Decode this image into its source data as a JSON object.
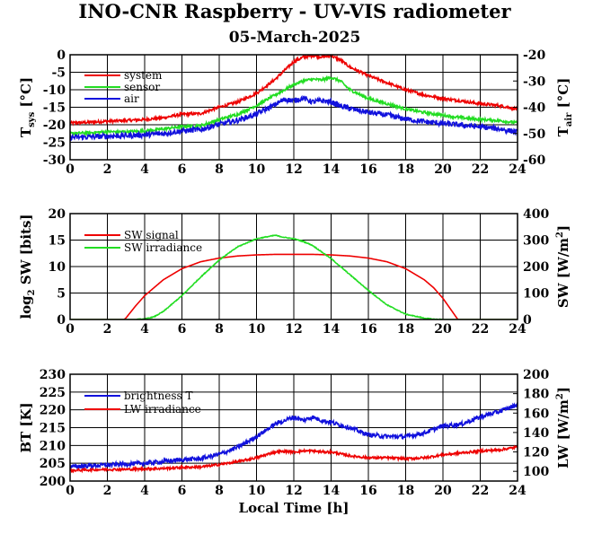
{
  "figure": {
    "title": "INO-CNR Raspberry - UV-VIS radiometer",
    "subtitle": "05-March-2025"
  },
  "chart_data": [
    {
      "type": "line",
      "x": [
        0,
        1,
        2,
        3,
        4,
        5,
        6,
        7,
        8,
        9,
        10,
        11,
        11.5,
        12,
        12.5,
        13,
        13.5,
        14,
        14.5,
        15,
        16,
        17,
        18,
        19,
        20,
        21,
        22,
        23,
        24
      ],
      "xlim": [
        0,
        24
      ],
      "xticks": [
        "0",
        "2",
        "4",
        "6",
        "8",
        "10",
        "12",
        "14",
        "16",
        "18",
        "20",
        "22",
        "24"
      ],
      "ylim": [
        -30,
        0
      ],
      "yticks": [
        "-30",
        "-25",
        "-20",
        "-15",
        "-10",
        "-5",
        "0"
      ],
      "y2lim": [
        -60,
        -20
      ],
      "y2ticks": [
        "-60",
        "-50",
        "-40",
        "-30",
        "-20"
      ],
      "ylabel": "T",
      "ylabel_sub": "sys",
      "ylabel_unit": " [°C]",
      "y2label": "T",
      "y2label_sub": "air",
      "y2label_unit": " [°C]",
      "xlabel": "",
      "grid": true,
      "legend_position": "top-left",
      "series": [
        {
          "name": "system",
          "color": "#ee0000",
          "axis": "left",
          "values": [
            -19.5,
            -19.3,
            -19,
            -18.8,
            -18.5,
            -18,
            -17,
            -16.8,
            -15,
            -13.5,
            -11,
            -7,
            -4.5,
            -2,
            -0.7,
            -0.2,
            -0.6,
            -0.3,
            -1.5,
            -3.5,
            -6,
            -8,
            -10,
            -11.5,
            -12.5,
            -13.2,
            -14,
            -14.5,
            -15.5
          ],
          "noise": 0.4
        },
        {
          "name": "sensor",
          "color": "#22dd22",
          "axis": "left",
          "values": [
            -22.5,
            -22.3,
            -22,
            -22,
            -21.8,
            -21.2,
            -20.5,
            -20.3,
            -18.5,
            -17,
            -14.5,
            -11.5,
            -10,
            -8.5,
            -7.5,
            -7,
            -7.2,
            -6.5,
            -7.5,
            -10,
            -12.5,
            -14,
            -15.5,
            -16.5,
            -17.3,
            -18,
            -18.5,
            -18.8,
            -19.5
          ],
          "noise": 0.4
        },
        {
          "name": "air",
          "color": "#1111dd",
          "axis": "right",
          "values": [
            -51.5,
            -51.3,
            -51,
            -50.8,
            -50.5,
            -50,
            -49,
            -48.5,
            -46.5,
            -45,
            -42.5,
            -39,
            -37,
            -37.5,
            -36.5,
            -38,
            -37.5,
            -38,
            -39.5,
            -40.5,
            -42,
            -43,
            -44.5,
            -45.5,
            -46.2,
            -46.8,
            -47.5,
            -48.2,
            -49.5
          ],
          "noise": 1.0
        }
      ]
    },
    {
      "type": "line",
      "x": [
        0,
        2,
        2.9,
        3,
        4,
        5,
        6,
        7,
        8,
        9,
        10,
        11,
        12,
        13,
        14,
        15,
        16,
        17,
        18,
        19,
        20,
        20.7,
        20.8,
        21,
        24
      ],
      "xlim": [
        0,
        24
      ],
      "xticks": [
        "0",
        "2",
        "4",
        "6",
        "8",
        "10",
        "12",
        "14",
        "16",
        "18",
        "20",
        "22",
        "24"
      ],
      "ylim": [
        0,
        20
      ],
      "yticks": [
        "0",
        "5",
        "10",
        "15",
        "20"
      ],
      "y2lim": [
        0,
        400
      ],
      "y2ticks": [
        "0",
        "100",
        "200",
        "300",
        "400"
      ],
      "ylabel": "log",
      "ylabel_sub": "2",
      "ylabel_unit": " SW [bits]",
      "y2label": "SW [W/m",
      "y2label_sup": "2",
      "y2label_unit": "]",
      "xlabel": "",
      "grid": true,
      "legend_position": "top-left",
      "series": [
        {
          "name": "SW signal",
          "color": "#ee0000",
          "axis": "left",
          "x": [
            0,
            2.9,
            3,
            3.5,
            4,
            5,
            6,
            7,
            8,
            9,
            10,
            11,
            12,
            13,
            14,
            15,
            16,
            17,
            18,
            19,
            19.5,
            20,
            20.4,
            20.7,
            20.8,
            24
          ],
          "values": [
            0,
            0,
            0.3,
            2.5,
            4.5,
            7.5,
            9.6,
            10.9,
            11.6,
            12.0,
            12.2,
            12.3,
            12.3,
            12.3,
            12.2,
            12.0,
            11.6,
            10.9,
            9.6,
            7.5,
            6.0,
            4.0,
            2.0,
            0.5,
            0,
            0
          ],
          "noise": 0.0
        },
        {
          "name": "SW irradiance",
          "color": "#22dd22",
          "axis": "right",
          "x": [
            0,
            3.5,
            4,
            4.5,
            5,
            6,
            7,
            8,
            9,
            10,
            11,
            11.5,
            12,
            12.5,
            13,
            14,
            15,
            16,
            17,
            18,
            19,
            19.5,
            20,
            21,
            24
          ],
          "values": [
            0,
            0,
            2,
            10,
            30,
            90,
            160,
            225,
            275,
            305,
            318,
            310,
            305,
            295,
            280,
            230,
            170,
            110,
            55,
            20,
            5,
            1,
            0,
            0,
            0
          ],
          "noise": 1.5
        }
      ]
    },
    {
      "type": "line",
      "x": [
        0,
        1,
        2,
        3,
        4,
        5,
        6,
        7,
        8,
        9,
        10,
        11,
        11.5,
        12,
        12.5,
        13,
        13.5,
        14,
        15,
        16,
        17,
        18,
        19,
        20,
        21,
        22,
        23,
        24
      ],
      "xlim": [
        0,
        24
      ],
      "xticks": [
        "0",
        "2",
        "4",
        "6",
        "8",
        "10",
        "12",
        "14",
        "16",
        "18",
        "20",
        "22",
        "24"
      ],
      "ylim": [
        200,
        230
      ],
      "yticks": [
        "200",
        "205",
        "210",
        "215",
        "220",
        "225",
        "230"
      ],
      "y2lim": [
        90,
        200
      ],
      "y2ticks": [
        "100",
        "120",
        "140",
        "160",
        "180",
        "200"
      ],
      "ylabel": "BT [K]",
      "y2label": "LW [W/m",
      "y2label_sup": "2",
      "y2label_unit": "]",
      "xlabel": "Local Time [h]",
      "grid": true,
      "legend_position": "top-left",
      "series": [
        {
          "name": "brightness T",
          "color": "#1111dd",
          "axis": "left",
          "values": [
            204,
            204.3,
            204.5,
            204.8,
            205,
            205.5,
            206,
            206.3,
            207.5,
            209.5,
            212.5,
            216,
            217,
            218,
            217,
            218,
            217,
            216.5,
            215,
            213,
            212.5,
            212.5,
            213.5,
            215.5,
            216,
            218,
            219.5,
            221.5
          ],
          "noise": 0.6
        },
        {
          "name": "LW irradiance",
          "color": "#ee0000",
          "axis": "right",
          "values": [
            101,
            101.5,
            102,
            102,
            102.5,
            103,
            104,
            104.5,
            107,
            110,
            114,
            120,
            120.5,
            120,
            121,
            121,
            120,
            120,
            116,
            114,
            114,
            113,
            114,
            117,
            119,
            121,
            122,
            125
          ],
          "noise": 1.2
        }
      ]
    }
  ]
}
